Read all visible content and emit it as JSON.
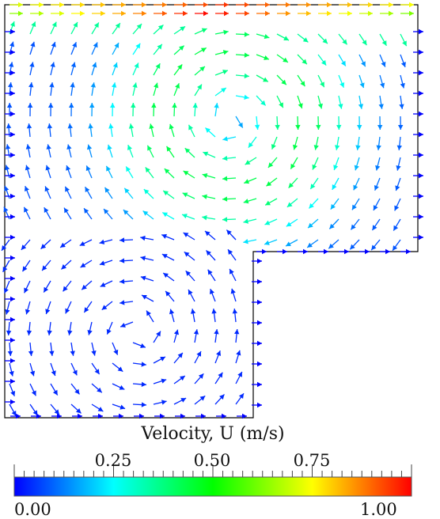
{
  "colorbar": {
    "title": "Velocity, U (m/s)",
    "min_label": "0.00",
    "max_label": "1.00",
    "ticks": [
      "0.25",
      "0.50",
      "0.75"
    ],
    "colors": [
      "#0000ff",
      "#00ffff",
      "#00ff00",
      "#ffff00",
      "#ff0000"
    ]
  },
  "field": {
    "description_colors": {
      "slow": "#0000ff",
      "fast": "#ff0000"
    }
  }
}
